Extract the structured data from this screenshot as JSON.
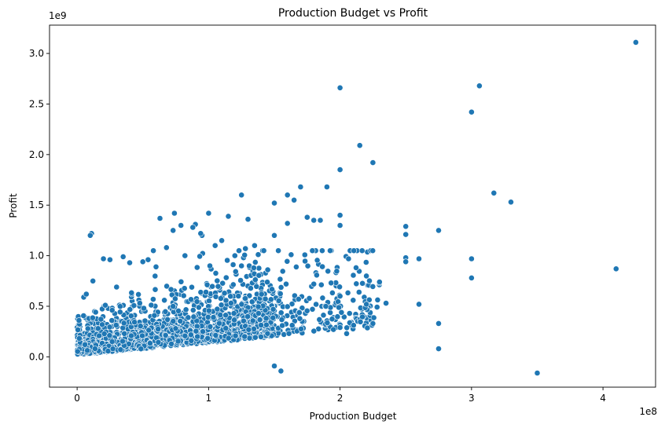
{
  "chart_data": {
    "type": "scatter",
    "title": "Production Budget vs Profit",
    "xlabel": "Production Budget",
    "ylabel": "Profit",
    "x_offset_text": "1e8",
    "y_offset_text": "1e9",
    "xlim": [
      -0.21,
      4.4
    ],
    "ylim": [
      -0.3,
      3.28
    ],
    "x_ticks": [
      0,
      1,
      2,
      3,
      4
    ],
    "x_tick_labels": [
      "0",
      "1",
      "2",
      "3",
      "4"
    ],
    "y_ticks": [
      0.0,
      0.5,
      1.0,
      1.5,
      2.0,
      2.5,
      3.0
    ],
    "y_tick_labels": [
      "0.0",
      "0.5",
      "1.0",
      "1.5",
      "2.0",
      "2.5",
      "3.0"
    ],
    "grid": false,
    "marker_color": "#1f77b4",
    "marker_edge_color": "#ffffff",
    "series": [
      {
        "x": [
          4.25,
          3.06,
          3.0,
          2.0,
          2.15,
          2.25,
          2.0,
          3.17,
          3.3,
          1.25,
          1.6,
          1.7,
          1.0,
          4.1,
          3.0,
          3.0,
          2.0,
          2.0,
          2.75,
          2.5,
          2.5,
          2.6,
          2.6,
          3.5,
          2.75,
          2.75,
          0.11,
          0.1,
          1.5,
          1.5,
          1.75,
          1.8,
          1.9,
          0.63,
          0.74,
          0.9,
          0.95,
          0.73,
          0.79,
          0.68,
          0.58,
          0.54,
          0.88,
          1.15,
          1.3,
          0.05,
          0.07,
          0.12,
          0.2,
          0.25,
          0.35,
          0.4,
          0.3,
          0.5,
          0.6,
          0.82,
          0.94,
          1.05,
          1.1,
          1.2,
          1.28,
          1.35,
          1.42,
          1.6,
          1.65,
          1.85,
          2.1,
          2.2,
          2.3,
          2.25,
          2.0,
          2.0,
          2.35,
          1.95,
          2.05,
          0.98,
          1.25,
          1.45,
          1.8,
          2.2,
          2.5,
          2.5,
          2.3,
          1.5,
          1.55
        ],
        "y": [
          3.11,
          2.68,
          2.42,
          2.66,
          2.09,
          1.92,
          1.85,
          1.62,
          1.53,
          1.6,
          1.6,
          1.68,
          1.42,
          0.87,
          0.97,
          0.78,
          1.4,
          1.3,
          1.25,
          1.29,
          1.21,
          0.97,
          0.52,
          -0.16,
          0.33,
          0.08,
          1.22,
          1.2,
          1.52,
          1.2,
          1.38,
          1.35,
          1.68,
          1.37,
          1.42,
          1.31,
          1.2,
          1.25,
          1.3,
          1.08,
          1.05,
          0.96,
          1.28,
          1.39,
          1.36,
          0.59,
          0.62,
          0.75,
          0.97,
          0.96,
          0.99,
          0.93,
          0.69,
          0.94,
          0.89,
          1.0,
          1.22,
          1.1,
          1.15,
          1.0,
          1.07,
          1.1,
          1.05,
          1.32,
          1.55,
          1.35,
          0.56,
          0.52,
          0.73,
          0.33,
          0.29,
          0.6,
          0.53,
          0.27,
          0.23,
          0.64,
          0.9,
          0.86,
          0.72,
          0.8,
          0.98,
          0.94,
          0.74,
          -0.09,
          -0.14
        ]
      }
    ],
    "dense_cloud_note": "dense cluster of thousands of points between x 0–2.3 and y -0.1–1.0"
  }
}
